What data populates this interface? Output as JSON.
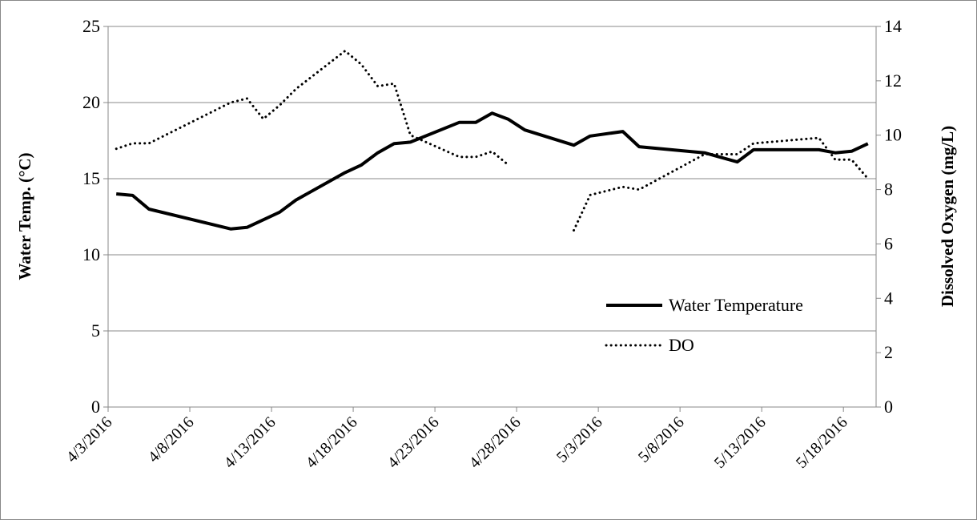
{
  "chart_data": {
    "type": "line",
    "y_label": "Water Temp. (°C)",
    "y2_label": "Dissolved Oxygen (mg/L)",
    "x": [
      "4/3/2016",
      "4/4/2016",
      "4/5/2016",
      "4/10/2016",
      "4/11/2016",
      "4/12/2016",
      "4/13/2016",
      "4/14/2016",
      "4/17/2016",
      "4/18/2016",
      "4/19/2016",
      "4/20/2016",
      "4/21/2016",
      "4/24/2016",
      "4/25/2016",
      "4/26/2016",
      "4/27/2016",
      "4/28/2016",
      "5/1/2016",
      "5/2/2016",
      "5/4/2016",
      "5/5/2016",
      "5/9/2016",
      "5/11/2016",
      "5/12/2016",
      "5/16/2016",
      "5/17/2016",
      "5/18/2016",
      "5/19/2016"
    ],
    "series": [
      {
        "name": "Water Temperature",
        "color": "#000000",
        "dash": "solid",
        "values": [
          14.0,
          13.9,
          13.0,
          11.7,
          11.8,
          12.3,
          12.8,
          13.6,
          15.4,
          15.9,
          16.7,
          17.3,
          17.4,
          18.7,
          18.7,
          19.3,
          18.9,
          18.2,
          17.2,
          17.8,
          18.1,
          17.1,
          16.7,
          16.1,
          16.9,
          16.9,
          16.7,
          16.8,
          17.3
        ]
      },
      {
        "name": "DO",
        "color": "#000000",
        "dash": "dotted",
        "axis": "y2",
        "values": [
          9.5,
          9.7,
          9.7,
          11.2,
          11.35,
          10.6,
          11.1,
          11.7,
          13.1,
          12.6,
          11.8,
          11.9,
          10.0,
          9.2,
          9.2,
          9.4,
          8.9,
          null,
          6.5,
          7.8,
          8.1,
          8.0,
          9.3,
          9.3,
          9.7,
          9.9,
          9.1,
          9.1,
          8.4
        ]
      }
    ],
    "xlim": [
      "4/3/2016",
      "5/20/2016"
    ],
    "xticks": [
      "4/3/2016",
      "4/8/2016",
      "4/13/2016",
      "4/18/2016",
      "4/23/2016",
      "4/28/2016",
      "5/3/2016",
      "5/8/2016",
      "5/13/2016",
      "5/18/2016"
    ],
    "ylim": [
      0,
      25
    ],
    "yticks": [
      0,
      5,
      10,
      15,
      20,
      25
    ],
    "y2lim": [
      0,
      14
    ],
    "y2ticks": [
      0,
      2,
      4,
      6,
      8,
      10,
      12,
      14
    ],
    "grid": true,
    "legend": "right"
  }
}
